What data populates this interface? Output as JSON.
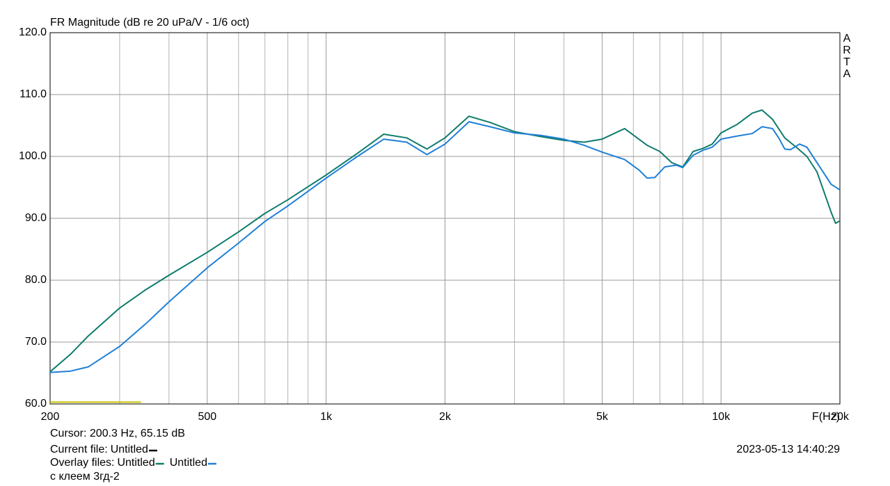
{
  "chart_data": {
    "type": "line",
    "title": "FR Magnitude (dB re 20 uPa/V - 1/6 oct)",
    "side_label": "ARTA",
    "x_label": "F(Hz)",
    "log_x": true,
    "grid": true,
    "xlim": [
      200,
      20000
    ],
    "ylim": [
      60,
      120
    ],
    "xticks": [
      200,
      500,
      {
        "value": 1000,
        "label": "1k"
      },
      {
        "value": 2000,
        "label": "2k"
      },
      {
        "value": 5000,
        "label": "5k"
      },
      {
        "value": 10000,
        "label": "10k"
      },
      {
        "value": 20000,
        "label": "20k"
      }
    ],
    "xgrid": [
      300,
      400,
      600,
      700,
      800,
      900,
      3000,
      4000,
      6000,
      7000,
      8000,
      9000
    ],
    "yticks": [
      {
        "value": 60,
        "label": "60.0"
      },
      {
        "value": 70,
        "label": "70.0"
      },
      {
        "value": 80,
        "label": "80.0"
      },
      {
        "value": 90,
        "label": "90.0"
      },
      {
        "value": 100,
        "label": "100.0"
      },
      {
        "value": 110,
        "label": "110.0"
      },
      {
        "value": 120,
        "label": "120.0"
      }
    ],
    "series": [
      {
        "name": "Untitled",
        "color": "#0e7c6b",
        "x": [
          200,
          225,
          250,
          300,
          350,
          400,
          500,
          600,
          700,
          800,
          1000,
          1200,
          1400,
          1600,
          1800,
          2000,
          2300,
          2600,
          3000,
          3500,
          4000,
          4500,
          5000,
          5700,
          6500,
          7000,
          7500,
          8000,
          8500,
          9000,
          9500,
          10000,
          11000,
          12000,
          12700,
          13500,
          14500,
          15500,
          16500,
          17500,
          19000,
          19500,
          20000
        ],
        "values": [
          65.2,
          68,
          71,
          75.5,
          78.5,
          80.8,
          84.5,
          87.8,
          90.8,
          93,
          97,
          100.5,
          103.6,
          103,
          101.2,
          103,
          106.5,
          105.5,
          104,
          103.2,
          102.6,
          102.3,
          102.8,
          104.5,
          101.8,
          100.8,
          99,
          98.3,
          100.8,
          101.3,
          102,
          103.8,
          105.2,
          107,
          107.5,
          106,
          103,
          101.5,
          100,
          97.5,
          91,
          89.2,
          89.6
        ]
      },
      {
        "name": "Untitled",
        "color": "#1e7fd6",
        "x": [
          200,
          225,
          250,
          300,
          350,
          400,
          500,
          600,
          700,
          800,
          1000,
          1200,
          1400,
          1600,
          1800,
          2000,
          2300,
          2600,
          3000,
          3500,
          4000,
          4500,
          5000,
          5700,
          6200,
          6500,
          6800,
          7200,
          7700,
          8000,
          8500,
          9000,
          9500,
          10000,
          11000,
          12000,
          12700,
          13500,
          14000,
          14500,
          15000,
          15800,
          16500,
          17500,
          19000,
          20000
        ],
        "values": [
          65.1,
          65.3,
          66,
          69.3,
          73,
          76.5,
          82,
          86,
          89.5,
          92,
          96.5,
          100,
          102.8,
          102.3,
          100.3,
          102,
          105.6,
          104.8,
          103.8,
          103.4,
          102.8,
          101.8,
          100.7,
          99.5,
          97.8,
          96.5,
          96.6,
          98.3,
          98.6,
          98.2,
          100.2,
          101,
          101.5,
          102.8,
          103.3,
          103.7,
          104.8,
          104.5,
          103,
          101.2,
          101.1,
          102,
          101.5,
          99,
          95.5,
          94.6
        ]
      }
    ],
    "current_trace": {
      "color": "#c8c000",
      "x": [
        200,
        340
      ],
      "values": [
        60.3,
        60.3
      ]
    },
    "cursor": "Cursor: 200.3 Hz, 65.15 dB",
    "current_file_label": "Current file:",
    "current_file_name": "Untitled",
    "current_file_color": "#000000",
    "overlay_label": "Overlay files:",
    "overlay_note": "с клеем 3гд-2",
    "timestamp": "2023-05-13  14:40:29"
  }
}
